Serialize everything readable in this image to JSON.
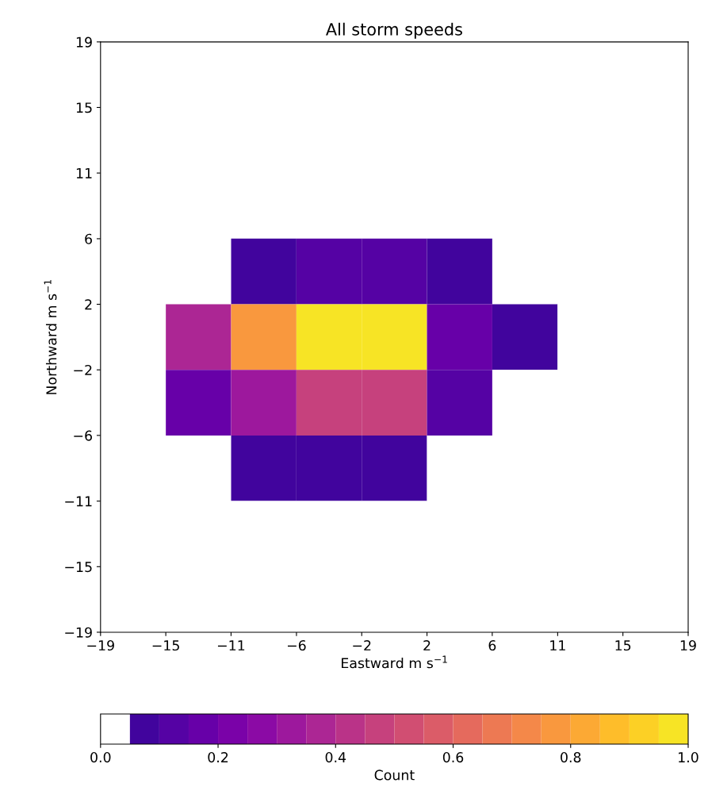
{
  "chart_data": {
    "type": "heatmap",
    "title": "All storm speeds",
    "xlabel": "Eastward m s$^{−1}$",
    "ylabel": "Northward m s$^{−1}$",
    "clabel": "Count",
    "xlim": [
      -19,
      19
    ],
    "ylim": [
      -19,
      19
    ],
    "xticks": [
      {
        "value": -19,
        "label": "−19"
      },
      {
        "value": -14.78,
        "label": "−15"
      },
      {
        "value": -10.56,
        "label": "−11"
      },
      {
        "value": -6.33,
        "label": "−6"
      },
      {
        "value": -2.11,
        "label": "−2"
      },
      {
        "value": 2.11,
        "label": "2"
      },
      {
        "value": 6.33,
        "label": "6"
      },
      {
        "value": 10.56,
        "label": "11"
      },
      {
        "value": 14.78,
        "label": "15"
      },
      {
        "value": 19,
        "label": "19"
      }
    ],
    "yticks": [
      {
        "value": -19,
        "label": "−19"
      },
      {
        "value": -14.78,
        "label": "−15"
      },
      {
        "value": -10.56,
        "label": "−11"
      },
      {
        "value": -6.33,
        "label": "−6"
      },
      {
        "value": -2.11,
        "label": "−2"
      },
      {
        "value": 2.11,
        "label": "2"
      },
      {
        "value": 6.33,
        "label": "6"
      },
      {
        "value": 10.56,
        "label": "11"
      },
      {
        "value": 14.78,
        "label": "15"
      },
      {
        "value": 19,
        "label": "19"
      }
    ],
    "cells": [
      [
        0,
        0,
        0,
        0,
        0,
        0,
        0,
        0,
        0
      ],
      [
        0,
        0,
        0,
        0,
        0,
        0,
        0,
        0,
        0
      ],
      [
        0,
        0,
        0,
        0,
        0,
        0,
        0,
        0,
        0
      ],
      [
        0,
        0,
        0.075,
        0.125,
        0.125,
        0.075,
        0,
        0,
        0
      ],
      [
        0,
        0.375,
        0.775,
        0.975,
        0.975,
        0.175,
        0.075,
        0,
        0
      ],
      [
        0,
        0.175,
        0.325,
        0.475,
        0.475,
        0.125,
        0,
        0,
        0
      ],
      [
        0,
        0,
        0.075,
        0.075,
        0.075,
        0,
        0,
        0,
        0
      ],
      [
        0,
        0,
        0,
        0,
        0,
        0,
        0,
        0,
        0
      ],
      [
        0,
        0,
        0,
        0,
        0,
        0,
        0,
        0,
        0
      ]
    ],
    "clim": [
      0,
      1
    ],
    "cticks": [
      {
        "value": 0,
        "label": "0.0"
      },
      {
        "value": 0.2,
        "label": "0.2"
      },
      {
        "value": 0.4,
        "label": "0.4"
      },
      {
        "value": 0.6,
        "label": "0.6"
      },
      {
        "value": 0.8,
        "label": "0.8"
      },
      {
        "value": 1,
        "label": "1.0"
      }
    ]
  }
}
